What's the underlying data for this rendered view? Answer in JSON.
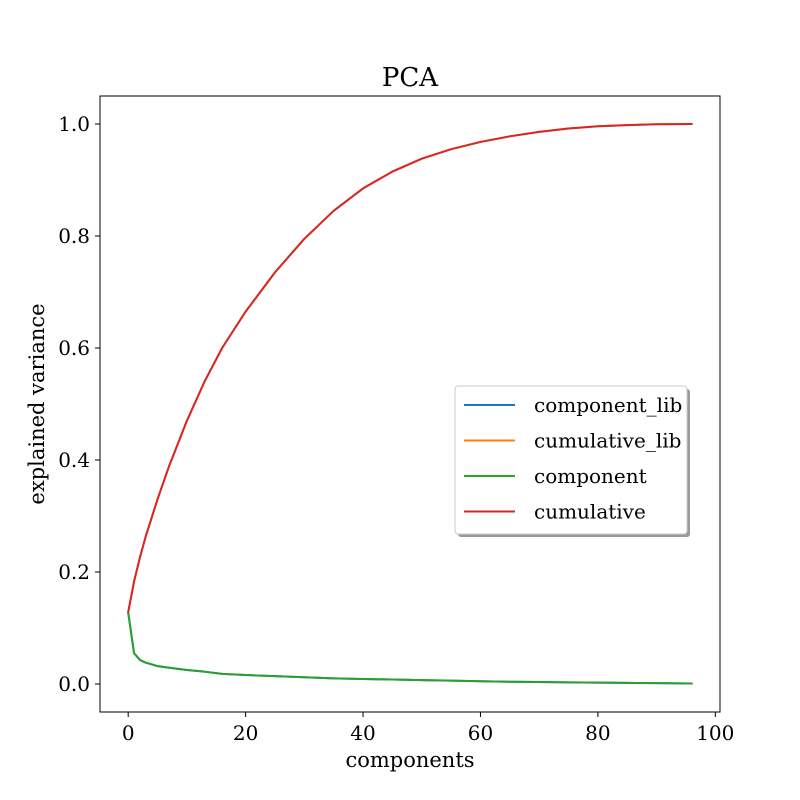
{
  "chart_data": {
    "type": "line",
    "title": "PCA",
    "xlabel": "components",
    "ylabel": "explained variance",
    "xlim": [
      -4.8,
      100.8
    ],
    "ylim": [
      -0.05,
      1.05
    ],
    "xticks": [
      0,
      20,
      40,
      60,
      80,
      100
    ],
    "yticks": [
      0.0,
      0.2,
      0.4,
      0.6,
      0.8,
      1.0
    ],
    "xtick_labels": [
      "0",
      "20",
      "40",
      "60",
      "80",
      "100"
    ],
    "ytick_labels": [
      "0.0",
      "0.2",
      "0.4",
      "0.6",
      "0.8",
      "1.0"
    ],
    "grid": false,
    "legend_position": "center-right",
    "x": [
      0,
      1,
      2,
      3,
      5,
      7,
      10,
      13,
      16,
      20,
      25,
      30,
      35,
      40,
      45,
      50,
      55,
      60,
      65,
      70,
      75,
      80,
      85,
      90,
      96
    ],
    "series": [
      {
        "name": "component_lib",
        "color": "#1f77b4",
        "values": [
          0.128,
          0.055,
          0.043,
          0.038,
          0.032,
          0.029,
          0.025,
          0.022,
          0.018,
          0.016,
          0.014,
          0.012,
          0.01,
          0.009,
          0.008,
          0.007,
          0.006,
          0.005,
          0.004,
          0.0035,
          0.003,
          0.0025,
          0.002,
          0.0015,
          0.001
        ]
      },
      {
        "name": "cumulative_lib",
        "color": "#ff7f0e",
        "values": [
          0.128,
          0.183,
          0.226,
          0.264,
          0.33,
          0.39,
          0.47,
          0.54,
          0.6,
          0.665,
          0.735,
          0.795,
          0.845,
          0.885,
          0.915,
          0.938,
          0.955,
          0.968,
          0.978,
          0.986,
          0.992,
          0.996,
          0.998,
          0.9995,
          1.0
        ]
      },
      {
        "name": "component",
        "color": "#2ca02c",
        "values": [
          0.128,
          0.055,
          0.043,
          0.038,
          0.032,
          0.029,
          0.025,
          0.022,
          0.018,
          0.016,
          0.014,
          0.012,
          0.01,
          0.009,
          0.008,
          0.007,
          0.006,
          0.005,
          0.004,
          0.0035,
          0.003,
          0.0025,
          0.002,
          0.0015,
          0.001
        ]
      },
      {
        "name": "cumulative",
        "color": "#d62728",
        "values": [
          0.128,
          0.183,
          0.226,
          0.264,
          0.33,
          0.39,
          0.47,
          0.54,
          0.6,
          0.665,
          0.735,
          0.795,
          0.845,
          0.885,
          0.915,
          0.938,
          0.955,
          0.968,
          0.978,
          0.986,
          0.992,
          0.996,
          0.998,
          0.9995,
          1.0
        ]
      }
    ]
  }
}
